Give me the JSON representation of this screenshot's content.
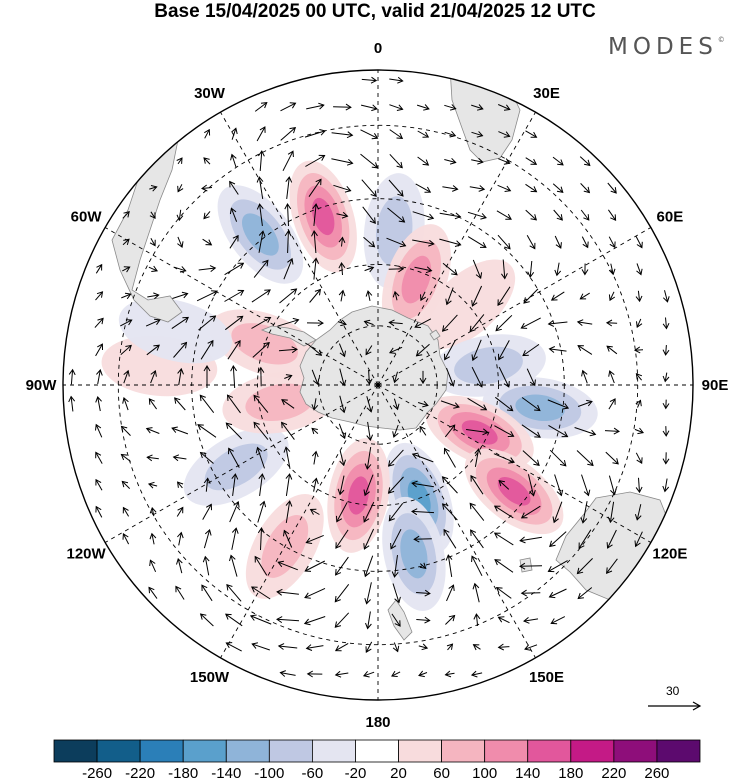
{
  "title": "Base 15/04/2025 00 UTC, valid 21/04/2025 12 UTC",
  "brand": "MODES",
  "brand_mark": "©",
  "map": {
    "projection": "south-polar-stereographic",
    "longitude_labels": [
      {
        "text": "0",
        "lon": 0
      },
      {
        "text": "30E",
        "lon": 30
      },
      {
        "text": "60E",
        "lon": 60
      },
      {
        "text": "90E",
        "lon": 90
      },
      {
        "text": "120E",
        "lon": 120
      },
      {
        "text": "150E",
        "lon": 150
      },
      {
        "text": "180",
        "lon": 180
      },
      {
        "text": "150W",
        "lon": -150
      },
      {
        "text": "120W",
        "lon": -120
      },
      {
        "text": "90W",
        "lon": -90
      },
      {
        "text": "60W",
        "lon": -60
      },
      {
        "text": "30W",
        "lon": -30
      }
    ],
    "latitude_circles": [
      -30,
      -45,
      -60,
      -75
    ],
    "anomaly_centers": [
      {
        "lon": -18,
        "lat": -47,
        "value": 190
      },
      {
        "lon": -38,
        "lat": -44,
        "value": -150
      },
      {
        "lon": 6,
        "lat": -52,
        "value": -90
      },
      {
        "lon": 20,
        "lat": -62,
        "value": 120
      },
      {
        "lon": 48,
        "lat": -60,
        "value": 60
      },
      {
        "lon": 80,
        "lat": -62,
        "value": -110
      },
      {
        "lon": 98,
        "lat": -50,
        "value": -150
      },
      {
        "lon": 115,
        "lat": -62,
        "value": 170
      },
      {
        "lon": 128,
        "lat": -48,
        "value": 180
      },
      {
        "lon": 160,
        "lat": -60,
        "value": -160
      },
      {
        "lon": 168,
        "lat": -48,
        "value": -120
      },
      {
        "lon": -170,
        "lat": -62,
        "value": 180
      },
      {
        "lon": -150,
        "lat": -45,
        "value": 110
      },
      {
        "lon": -120,
        "lat": -50,
        "value": -90
      },
      {
        "lon": -100,
        "lat": -65,
        "value": 110
      },
      {
        "lon": -85,
        "lat": -38,
        "value": 60
      },
      {
        "lon": -70,
        "lat": -60,
        "value": 80
      },
      {
        "lon": -75,
        "lat": -40,
        "value": -70
      }
    ]
  },
  "colorbar": {
    "colors": [
      "#0c3d5c",
      "#125e8a",
      "#2b7fb8",
      "#5aa0cc",
      "#8fb4d9",
      "#bfc8e3",
      "#e4e5f1",
      "#ffffff",
      "#f8dcdd",
      "#f5b5c0",
      "#f08cac",
      "#e2579c",
      "#c41a86",
      "#8e0e7a",
      "#5c0a6e"
    ],
    "tick_labels": [
      "-260",
      "-220",
      "-180",
      "-140",
      "-100",
      "-60",
      "-20",
      "20",
      "60",
      "100",
      "140",
      "180",
      "220",
      "260"
    ]
  },
  "reference_vector": {
    "value": "30"
  },
  "colors": {
    "land": "#e6e6e6",
    "coast": "#8a8a8a",
    "arrow": "#000000",
    "grid": "#000000"
  }
}
